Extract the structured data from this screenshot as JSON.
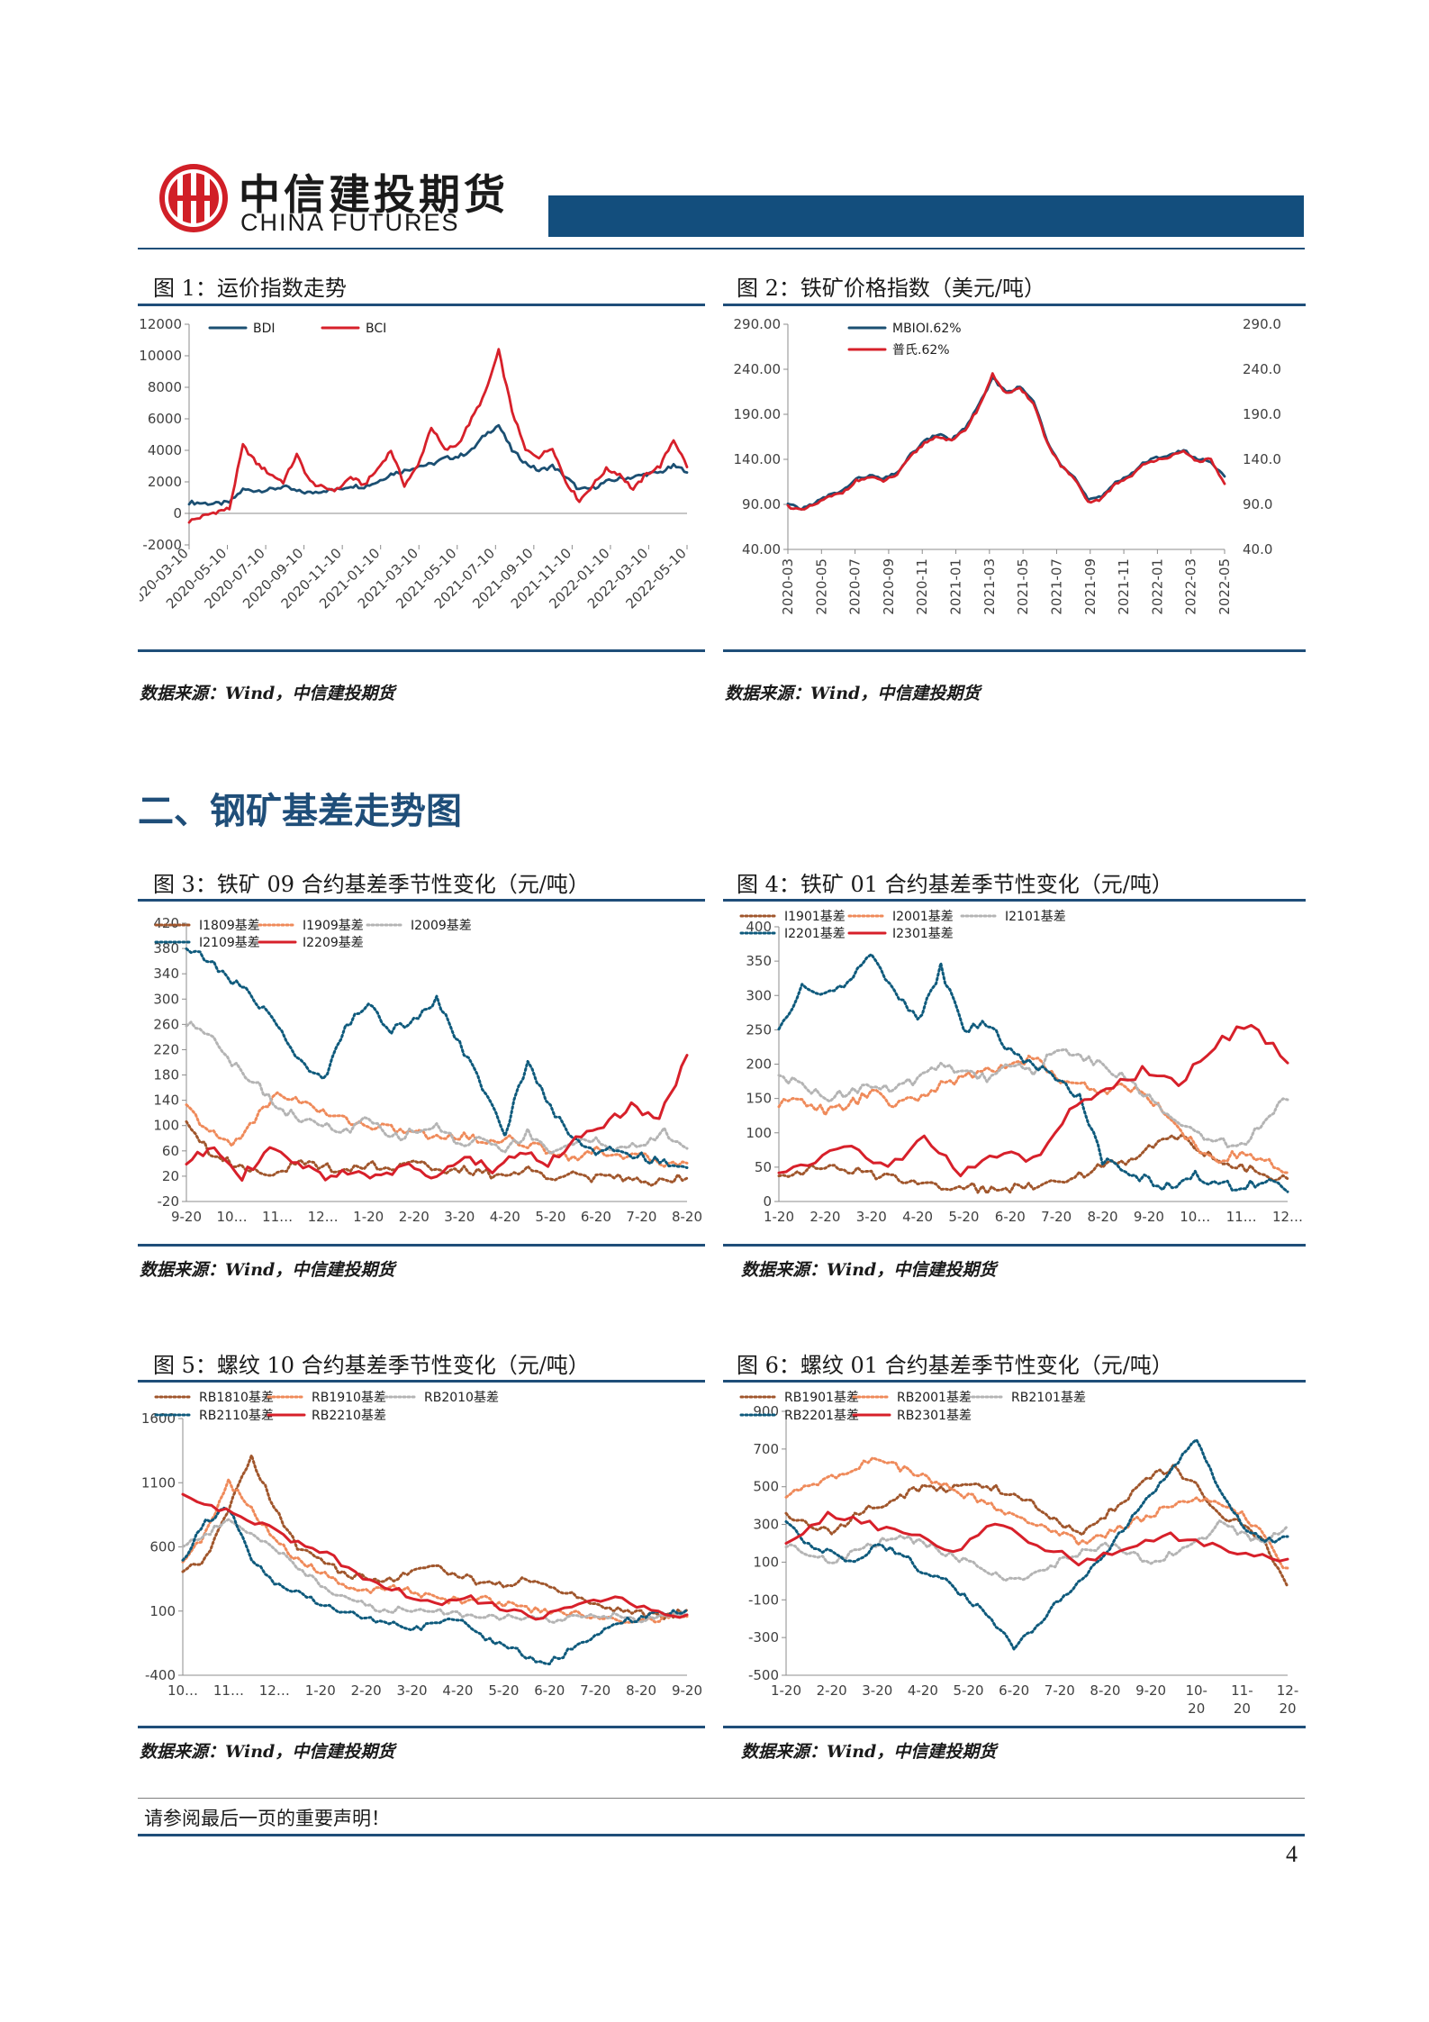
{
  "header": {
    "company_cn": "中信建投期货",
    "company_en": "CHINA FUTURES"
  },
  "figures": [
    {
      "title": "图 1：运价指数走势",
      "source": "数据来源：Wind，中信建投期货"
    },
    {
      "title": "图 2：铁矿价格指数（美元/吨）",
      "source": "数据来源：Wind，中信建投期货"
    },
    {
      "title": "图 3：铁矿 09 合约基差季节性变化（元/吨）",
      "source": "数据来源：Wind，中信建投期货"
    },
    {
      "title": "图 4：铁矿 01 合约基差季节性变化（元/吨）",
      "source": "数据来源：Wind，中信建投期货"
    },
    {
      "title": "图 5：螺纹 10 合约基差季节性变化（元/吨）",
      "source": "数据来源：Wind，中信建投期货"
    },
    {
      "title": "图 6：螺纹 01 合约基差季节性变化（元/吨）",
      "source": "数据来源：Wind，中信建投期货"
    }
  ],
  "section_heading": "二、钢矿基差走势图",
  "footer": {
    "note": "请参阅最后一页的重要声明！",
    "page_number": "4"
  },
  "colors": {
    "navy": "#1f4e79",
    "band": "#134e7d",
    "red": "#d7202a",
    "darkblue": "#1b4f72",
    "brown": "#a0562c",
    "orange": "#ef8a5a",
    "grey": "#b4b4b4",
    "teal": "#0e5a7c"
  },
  "chart_data": [
    {
      "type": "line",
      "y_ticks": [
        "12000",
        "10000",
        "8000",
        "6000",
        "4000",
        "2000",
        "0",
        "-2000"
      ],
      "ylim": [
        -2000,
        12000
      ],
      "x_ticks": [
        "2020-03-10",
        "2020-05-10",
        "2020-07-10",
        "2020-09-10",
        "2020-11-10",
        "2021-01-10",
        "2021-03-10",
        "2021-05-10",
        "2021-07-10",
        "2021-09-10",
        "2021-11-10",
        "2022-01-10",
        "2022-03-10",
        "2022-05-10"
      ],
      "series": [
        {
          "name": "BDI",
          "color": "#1b4f72",
          "values": [
            700,
            650,
            600,
            700,
            1500,
            1450,
            1500,
            1700,
            1400,
            1300,
            1450,
            1500,
            1750,
            1700,
            2000,
            2500,
            2700,
            3000,
            3100,
            3500,
            3600,
            4000,
            5000,
            5600,
            4000,
            3200,
            2700,
            3000,
            2300,
            1500,
            1600,
            2000,
            2200,
            2300,
            2500,
            2600,
            3000,
            2700
          ]
        },
        {
          "name": "BCI",
          "color": "#d7202a",
          "values": [
            -500,
            -200,
            100,
            300,
            4300,
            3200,
            2500,
            2000,
            3700,
            2000,
            1600,
            1500,
            2300,
            1800,
            2800,
            4000,
            1800,
            3000,
            5500,
            4000,
            4400,
            6000,
            7600,
            10300,
            6500,
            4000,
            3600,
            4200,
            2000,
            800,
            1800,
            2800,
            2500,
            1500,
            2500,
            3000,
            4700,
            3000
          ]
        }
      ]
    },
    {
      "type": "line",
      "y_ticks_left": [
        "290.00",
        "240.00",
        "190.00",
        "140.00",
        "90.00",
        "40.00"
      ],
      "y_ticks_right": [
        "290.0",
        "240.0",
        "190.0",
        "140.0",
        "90.0",
        "40.0"
      ],
      "ylim": [
        40,
        290
      ],
      "x_ticks": [
        "2020-03",
        "2020-05",
        "2020-07",
        "2020-09",
        "2020-11",
        "2021-01",
        "2021-03",
        "2021-05",
        "2021-07",
        "2021-09",
        "2021-11",
        "2022-01",
        "2022-03",
        "2022-05"
      ],
      "series": [
        {
          "name": "MBIOI.62%",
          "color": "#1b4f72",
          "values": [
            90,
            85,
            92,
            100,
            105,
            118,
            122,
            118,
            125,
            145,
            160,
            168,
            162,
            175,
            200,
            230,
            215,
            220,
            205,
            160,
            135,
            120,
            95,
            98,
            115,
            122,
            135,
            142,
            145,
            150,
            140,
            138,
            120
          ]
        },
        {
          "name": "普氏.62%",
          "color": "#d7202a",
          "values": [
            88,
            83,
            90,
            98,
            103,
            116,
            120,
            116,
            123,
            143,
            158,
            166,
            160,
            173,
            198,
            234,
            213,
            218,
            203,
            158,
            133,
            118,
            92,
            96,
            113,
            120,
            133,
            140,
            143,
            148,
            138,
            140,
            112
          ]
        }
      ]
    },
    {
      "type": "line",
      "y_ticks": [
        "420",
        "380",
        "340",
        "300",
        "260",
        "220",
        "180",
        "140",
        "100",
        "60",
        "20",
        "-20"
      ],
      "ylim": [
        -20,
        420
      ],
      "x_ticks": [
        "9-20",
        "10…",
        "11…",
        "12…",
        "1-20",
        "2-20",
        "3-20",
        "4-20",
        "5-20",
        "6-20",
        "7-20",
        "8-20"
      ],
      "series": [
        {
          "name": "I1809基差",
          "color": "#a0562c",
          "dash": "dot",
          "values": [
            110,
            60,
            40,
            30,
            25,
            40,
            35,
            30,
            40,
            30,
            50,
            25,
            30,
            25,
            20,
            30,
            20,
            25,
            15,
            20,
            10,
            15,
            20
          ]
        },
        {
          "name": "I1909基差",
          "color": "#ef8a5a",
          "dash": "dot",
          "values": [
            130,
            90,
            70,
            110,
            150,
            140,
            120,
            110,
            100,
            95,
            90,
            80,
            85,
            75,
            80,
            70,
            60,
            50,
            60,
            55,
            50,
            40,
            45
          ]
        },
        {
          "name": "I2009基差",
          "color": "#b4b4b4",
          "dash": "dot",
          "values": [
            260,
            250,
            200,
            170,
            130,
            110,
            100,
            90,
            110,
            80,
            90,
            100,
            70,
            80,
            60,
            90,
            60,
            70,
            80,
            60,
            70,
            90,
            60
          ]
        },
        {
          "name": "I2109基差",
          "color": "#0e5a7c",
          "dash": "dot",
          "values": [
            380,
            360,
            330,
            300,
            260,
            200,
            170,
            260,
            290,
            250,
            270,
            300,
            230,
            160,
            90,
            200,
            130,
            80,
            60,
            60,
            50,
            40,
            30
          ]
        },
        {
          "name": "I2209基差",
          "color": "#d7202a",
          "dash": "solid",
          "values": [
            40,
            70,
            20,
            60,
            40,
            20,
            30,
            15,
            40,
            20,
            50,
            30,
            60,
            40,
            80,
            100,
            130,
            110,
            210
          ]
        }
      ]
    },
    {
      "type": "line",
      "y_ticks": [
        "400",
        "350",
        "300",
        "250",
        "200",
        "150",
        "100",
        "50",
        "0"
      ],
      "ylim": [
        0,
        400
      ],
      "x_ticks": [
        "1-20",
        "2-20",
        "3-20",
        "4-20",
        "5-20",
        "6-20",
        "7-20",
        "8-20",
        "9-20",
        "10…",
        "11…",
        "12…"
      ],
      "series": [
        {
          "name": "I1901基差",
          "color": "#a0562c",
          "dash": "dot",
          "values": [
            40,
            45,
            50,
            45,
            40,
            35,
            30,
            20,
            25,
            15,
            20,
            25,
            30,
            40,
            50,
            60,
            80,
            100,
            80,
            60,
            50,
            40,
            30
          ]
        },
        {
          "name": "I2001基差",
          "color": "#ef8a5a",
          "dash": "dot",
          "values": [
            140,
            150,
            130,
            140,
            160,
            140,
            150,
            170,
            180,
            190,
            200,
            210,
            180,
            170,
            160,
            170,
            150,
            120,
            80,
            60,
            70,
            60,
            40
          ]
        },
        {
          "name": "I2101基差",
          "color": "#b4b4b4",
          "dash": "dot",
          "values": [
            180,
            170,
            150,
            160,
            170,
            160,
            180,
            200,
            190,
            180,
            200,
            190,
            220,
            210,
            200,
            180,
            150,
            120,
            100,
            90,
            80,
            120,
            150
          ]
        },
        {
          "name": "I2201基差",
          "color": "#0e5a7c",
          "dash": "dot",
          "values": [
            250,
            310,
            300,
            320,
            360,
            310,
            260,
            340,
            250,
            260,
            220,
            200,
            180,
            150,
            60,
            40,
            30,
            20,
            40,
            25,
            20,
            30,
            20
          ]
        },
        {
          "name": "I2301基差",
          "color": "#d7202a",
          "dash": "solid",
          "values": [
            40,
            60,
            80,
            50,
            90,
            40,
            70,
            60,
            130,
            160,
            190,
            170,
            230,
            260,
            200
          ]
        }
      ]
    },
    {
      "type": "line",
      "y_ticks": [
        "1600",
        "1100",
        "600",
        "100",
        "-400"
      ],
      "ylim": [
        -400,
        1600
      ],
      "x_ticks": [
        "10…",
        "11…",
        "12…",
        "1-20",
        "2-20",
        "3-20",
        "4-20",
        "5-20",
        "6-20",
        "7-20",
        "8-20",
        "9-20"
      ],
      "series": [
        {
          "name": "RB1810基差",
          "color": "#a0562c",
          "dash": "dot",
          "values": [
            400,
            500,
            900,
            1300,
            900,
            600,
            500,
            400,
            350,
            350,
            400,
            450,
            380,
            320,
            300,
            350,
            300,
            220,
            150,
            120,
            80,
            60,
            100
          ]
        },
        {
          "name": "RB1910基差",
          "color": "#ef8a5a",
          "dash": "dot",
          "values": [
            500,
            700,
            1100,
            900,
            650,
            500,
            400,
            300,
            250,
            300,
            250,
            200,
            180,
            200,
            150,
            120,
            100,
            80,
            60,
            40,
            20,
            50,
            80
          ]
        },
        {
          "name": "RB2010基差",
          "color": "#b4b4b4",
          "dash": "dot",
          "values": [
            600,
            700,
            800,
            700,
            600,
            450,
            300,
            200,
            150,
            100,
            120,
            100,
            80,
            70,
            50,
            40,
            30,
            50,
            70,
            60,
            40,
            60,
            80
          ]
        },
        {
          "name": "RB2110基差",
          "color": "#0e5a7c",
          "dash": "dot",
          "values": [
            500,
            800,
            900,
            500,
            300,
            250,
            150,
            100,
            50,
            0,
            -50,
            0,
            50,
            -100,
            -150,
            -250,
            -300,
            -200,
            -100,
            0,
            50,
            80,
            100
          ]
        },
        {
          "name": "RB2210基差",
          "color": "#d7202a",
          "dash": "solid",
          "values": [
            1000,
            900,
            800,
            650,
            550,
            350,
            250,
            150,
            200,
            100,
            50,
            150,
            200,
            100,
            50
          ]
        }
      ]
    },
    {
      "type": "line",
      "y_ticks": [
        "900",
        "700",
        "500",
        "300",
        "100",
        "-100",
        "-300",
        "-500"
      ],
      "ylim": [
        -500,
        900
      ],
      "x_ticks": [
        "1-20",
        "2-20",
        "3-20",
        "4-20",
        "5-20",
        "6-20",
        "7-20",
        "8-20",
        "9-20",
        "10-20",
        "11-20",
        "12-20"
      ],
      "series": [
        {
          "name": "RB1901基差",
          "color": "#a0562c",
          "dash": "dot",
          "values": [
            350,
            300,
            250,
            350,
            400,
            450,
            500,
            480,
            520,
            500,
            450,
            400,
            300,
            250,
            350,
            450,
            550,
            600,
            500,
            350,
            300,
            200,
            -50
          ]
        },
        {
          "name": "RB2001基差",
          "color": "#ef8a5a",
          "dash": "dot",
          "values": [
            450,
            500,
            550,
            600,
            650,
            600,
            550,
            500,
            450,
            400,
            350,
            300,
            250,
            200,
            250,
            300,
            350,
            400,
            450,
            400,
            350,
            250,
            50
          ]
        },
        {
          "name": "RB2101基差",
          "color": "#b4b4b4",
          "dash": "dot",
          "values": [
            200,
            150,
            100,
            150,
            200,
            250,
            200,
            150,
            100,
            50,
            0,
            50,
            100,
            150,
            200,
            150,
            100,
            150,
            200,
            300,
            250,
            200,
            300
          ]
        },
        {
          "name": "RB2201基差",
          "color": "#0e5a7c",
          "dash": "dot",
          "values": [
            300,
            200,
            150,
            100,
            200,
            150,
            50,
            0,
            -100,
            -200,
            -350,
            -250,
            -100,
            0,
            150,
            300,
            450,
            600,
            750,
            500,
            300,
            200,
            250
          ]
        },
        {
          "name": "RB2301基差",
          "color": "#d7202a",
          "dash": "solid",
          "values": [
            200,
            350,
            300,
            250,
            150,
            300,
            200,
            100,
            150,
            250,
            200,
            150,
            100
          ]
        }
      ]
    }
  ]
}
